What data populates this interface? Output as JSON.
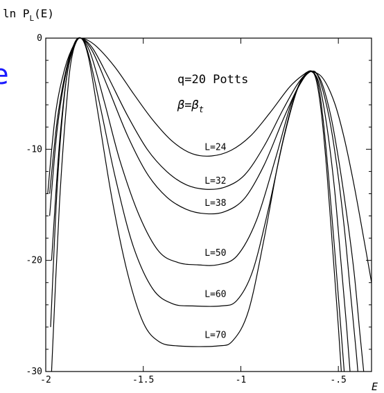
{
  "stray_glyph": "e",
  "chart_data": {
    "type": "line",
    "ylabel": "ln P",
    "ylabel_sub": "L",
    "ylabel_suffix": "(E)",
    "xlabel": "E",
    "annotation_model": "q=20 Potts",
    "annotation_beta": "β=β",
    "annotation_beta_sub": "t",
    "xlim": [
      -2.0,
      -0.33
    ],
    "ylim": [
      -30,
      0
    ],
    "xticks": [
      {
        "value": -2.0,
        "label": "-2"
      },
      {
        "value": -1.5,
        "label": "-1.5"
      },
      {
        "value": -1.0,
        "label": "-1"
      },
      {
        "value": -0.5,
        "label": "-.5"
      }
    ],
    "yticks": [
      {
        "value": 0,
        "label": "0"
      },
      {
        "value": -10,
        "label": "-10"
      },
      {
        "value": -20,
        "label": "-20"
      },
      {
        "value": -30,
        "label": "-30"
      }
    ],
    "series": [
      {
        "name": "L=24",
        "label_at": [
          -1.13,
          -10.4
        ],
        "points": [
          [
            -1.99,
            -14.0
          ],
          [
            -1.95,
            -6.8
          ],
          [
            -1.9,
            -2.6
          ],
          [
            -1.85,
            -0.4
          ],
          [
            -1.82,
            0.0
          ],
          [
            -1.75,
            -0.6
          ],
          [
            -1.65,
            -2.5
          ],
          [
            -1.55,
            -5.0
          ],
          [
            -1.45,
            -7.4
          ],
          [
            -1.35,
            -9.3
          ],
          [
            -1.25,
            -10.4
          ],
          [
            -1.15,
            -10.6
          ],
          [
            -1.05,
            -10.1
          ],
          [
            -0.95,
            -8.8
          ],
          [
            -0.85,
            -6.7
          ],
          [
            -0.75,
            -4.4
          ],
          [
            -0.68,
            -3.3
          ],
          [
            -0.64,
            -3.0
          ],
          [
            -0.58,
            -3.6
          ],
          [
            -0.52,
            -5.8
          ],
          [
            -0.47,
            -9.0
          ],
          [
            -0.42,
            -13.2
          ],
          [
            -0.37,
            -18.0
          ],
          [
            -0.33,
            -22.0
          ]
        ]
      },
      {
        "name": "L=32",
        "label_at": [
          -1.13,
          -13.4
        ],
        "points": [
          [
            -1.98,
            -14.0
          ],
          [
            -1.94,
            -7.2
          ],
          [
            -1.89,
            -2.4
          ],
          [
            -1.85,
            -0.4
          ],
          [
            -1.82,
            0.0
          ],
          [
            -1.76,
            -0.9
          ],
          [
            -1.68,
            -3.5
          ],
          [
            -1.58,
            -7.0
          ],
          [
            -1.48,
            -10.0
          ],
          [
            -1.38,
            -12.0
          ],
          [
            -1.28,
            -13.2
          ],
          [
            -1.18,
            -13.6
          ],
          [
            -1.08,
            -13.4
          ],
          [
            -0.98,
            -12.3
          ],
          [
            -0.88,
            -9.7
          ],
          [
            -0.78,
            -6.3
          ],
          [
            -0.7,
            -3.9
          ],
          [
            -0.64,
            -3.0
          ],
          [
            -0.59,
            -3.8
          ],
          [
            -0.54,
            -6.9
          ],
          [
            -0.5,
            -10.8
          ],
          [
            -0.46,
            -15.5
          ],
          [
            -0.42,
            -21.0
          ],
          [
            -0.39,
            -26.5
          ],
          [
            -0.37,
            -30.0
          ]
        ]
      },
      {
        "name": "L=38",
        "label_at": [
          -1.13,
          -15.4
        ],
        "points": [
          [
            -1.98,
            -16.0
          ],
          [
            -1.94,
            -8.0
          ],
          [
            -1.89,
            -2.6
          ],
          [
            -1.85,
            -0.5
          ],
          [
            -1.82,
            0.0
          ],
          [
            -1.76,
            -1.2
          ],
          [
            -1.68,
            -4.5
          ],
          [
            -1.58,
            -8.8
          ],
          [
            -1.48,
            -12.2
          ],
          [
            -1.38,
            -14.3
          ],
          [
            -1.28,
            -15.4
          ],
          [
            -1.18,
            -15.8
          ],
          [
            -1.08,
            -15.6
          ],
          [
            -0.98,
            -14.4
          ],
          [
            -0.88,
            -11.4
          ],
          [
            -0.78,
            -7.2
          ],
          [
            -0.7,
            -4.2
          ],
          [
            -0.64,
            -3.0
          ],
          [
            -0.6,
            -3.6
          ],
          [
            -0.55,
            -6.9
          ],
          [
            -0.51,
            -11.2
          ],
          [
            -0.47,
            -17.0
          ],
          [
            -0.44,
            -22.5
          ],
          [
            -0.41,
            -28.0
          ],
          [
            -0.4,
            -30.0
          ]
        ]
      },
      {
        "name": "L=50",
        "label_at": [
          -1.13,
          -19.9
        ],
        "points": [
          [
            -1.97,
            -20.0
          ],
          [
            -1.93,
            -9.5
          ],
          [
            -1.89,
            -3.2
          ],
          [
            -1.85,
            -0.6
          ],
          [
            -1.82,
            0.0
          ],
          [
            -1.77,
            -1.4
          ],
          [
            -1.7,
            -5.7
          ],
          [
            -1.62,
            -11.0
          ],
          [
            -1.52,
            -16.0
          ],
          [
            -1.42,
            -19.2
          ],
          [
            -1.32,
            -20.2
          ],
          [
            -1.22,
            -20.4
          ],
          [
            -1.12,
            -20.4
          ],
          [
            -1.02,
            -19.6
          ],
          [
            -0.92,
            -16.4
          ],
          [
            -0.82,
            -10.7
          ],
          [
            -0.74,
            -5.8
          ],
          [
            -0.67,
            -3.4
          ],
          [
            -0.64,
            -3.0
          ],
          [
            -0.6,
            -4.0
          ],
          [
            -0.56,
            -7.8
          ],
          [
            -0.52,
            -13.5
          ],
          [
            -0.49,
            -19.5
          ],
          [
            -0.46,
            -25.5
          ],
          [
            -0.44,
            -30.0
          ]
        ]
      },
      {
        "name": "L=60",
        "label_at": [
          -1.13,
          -23.6
        ],
        "points": [
          [
            -1.975,
            -26.0
          ],
          [
            -1.94,
            -13.0
          ],
          [
            -1.9,
            -4.5
          ],
          [
            -1.86,
            -0.8
          ],
          [
            -1.82,
            0.0
          ],
          [
            -1.78,
            -1.5
          ],
          [
            -1.72,
            -6.2
          ],
          [
            -1.64,
            -12.8
          ],
          [
            -1.55,
            -18.8
          ],
          [
            -1.45,
            -22.6
          ],
          [
            -1.35,
            -23.9
          ],
          [
            -1.25,
            -24.1
          ],
          [
            -1.1,
            -24.1
          ],
          [
            -1.02,
            -23.6
          ],
          [
            -0.94,
            -21.0
          ],
          [
            -0.86,
            -15.5
          ],
          [
            -0.78,
            -9.0
          ],
          [
            -0.71,
            -4.6
          ],
          [
            -0.65,
            -3.0
          ],
          [
            -0.61,
            -3.7
          ],
          [
            -0.58,
            -7.0
          ],
          [
            -0.55,
            -12.5
          ],
          [
            -0.52,
            -18.8
          ],
          [
            -0.49,
            -25.5
          ],
          [
            -0.47,
            -30.0
          ]
        ]
      },
      {
        "name": "L=70",
        "label_at": [
          -1.13,
          -27.3
        ],
        "points": [
          [
            -1.97,
            -30.0
          ],
          [
            -1.93,
            -15.0
          ],
          [
            -1.89,
            -5.2
          ],
          [
            -1.86,
            -1.2
          ],
          [
            -1.82,
            0.0
          ],
          [
            -1.78,
            -1.8
          ],
          [
            -1.73,
            -7.0
          ],
          [
            -1.66,
            -14.5
          ],
          [
            -1.58,
            -21.2
          ],
          [
            -1.5,
            -25.6
          ],
          [
            -1.42,
            -27.3
          ],
          [
            -1.32,
            -27.7
          ],
          [
            -1.12,
            -27.7
          ],
          [
            -1.04,
            -27.2
          ],
          [
            -0.96,
            -24.5
          ],
          [
            -0.88,
            -18.0
          ],
          [
            -0.8,
            -10.5
          ],
          [
            -0.72,
            -5.0
          ],
          [
            -0.66,
            -3.1
          ],
          [
            -0.62,
            -3.4
          ],
          [
            -0.59,
            -6.3
          ],
          [
            -0.56,
            -11.8
          ],
          [
            -0.53,
            -18.8
          ],
          [
            -0.5,
            -26.0
          ],
          [
            -0.485,
            -30.0
          ]
        ]
      }
    ]
  }
}
